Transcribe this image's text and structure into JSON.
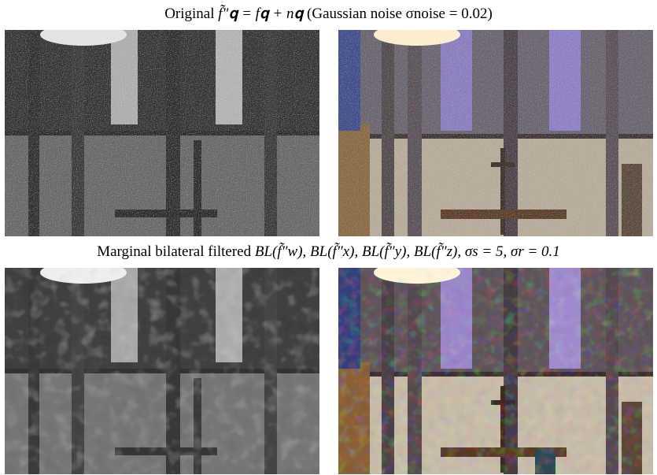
{
  "captions": {
    "top": {
      "prefix": "Original ",
      "formula": "f̃″𝐪 = f𝐪 + n𝐪",
      "suffix": " (Gaussian noise σnoise = 0.02)"
    },
    "bottom": {
      "prefix": "Marginal bilateral filtered ",
      "formula": "BL(f̃″w), BL(f̃″x), BL(f̃″y), BL(f̃″z), σs = 5, σr = 0.1"
    }
  },
  "panels": {
    "top_left": {
      "kind": "grayscale",
      "noise": "heavy"
    },
    "top_right": {
      "kind": "color",
      "noise": "heavy"
    },
    "bottom_left": {
      "kind": "grayscale",
      "noise": "smoothed"
    },
    "bottom_right": {
      "kind": "color",
      "noise": "smoothed"
    }
  }
}
